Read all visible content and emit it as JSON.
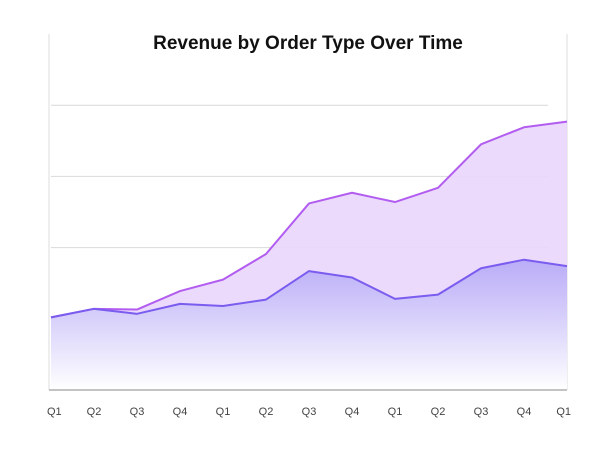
{
  "chart_data": {
    "type": "area",
    "title": "Revenue by Order Type Over Time",
    "xlabel": "",
    "ylabel": "",
    "x": [
      "Q1",
      "Q2",
      "Q3",
      "Q4",
      "Q1",
      "Q2",
      "Q3",
      "Q4",
      "Q1",
      "Q2",
      "Q3",
      "Q4",
      "Q1"
    ],
    "ylim": [
      0,
      500
    ],
    "y_gridlines": [
      100,
      200,
      300,
      400
    ],
    "grid": true,
    "stacked": true,
    "series": [
      {
        "values": [
          102,
          114,
          107,
          121,
          118,
          127,
          167,
          158,
          128,
          134,
          171,
          183,
          174
        ],
        "line_color": "#7a5cef",
        "fill_color": "#c7bdfa"
      },
      {
        "values": [
          0,
          0,
          6,
          18,
          37,
          64,
          95,
          119,
          136,
          150,
          174,
          186,
          203
        ],
        "line_color": "#b25df0",
        "fill_color": "#ead6fd"
      }
    ]
  }
}
